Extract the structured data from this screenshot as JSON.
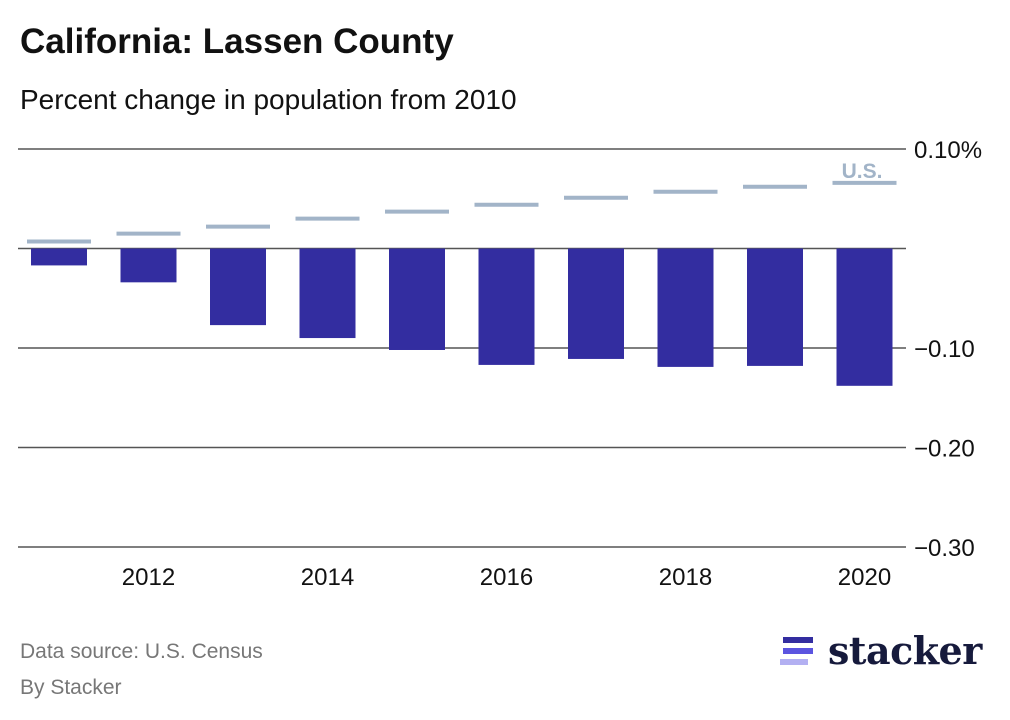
{
  "header": {
    "title": "California: Lassen County",
    "subtitle": "Percent change in population from 2010"
  },
  "footer": {
    "source": "Data source: U.S. Census",
    "byline": "By Stacker",
    "logo_text": "stacker"
  },
  "colors": {
    "bar": "#332da0",
    "us_line": "#a2b4c8",
    "grid": "#555555",
    "logo_bars": [
      "#332da0",
      "#5b54e0",
      "#b3b0f2"
    ]
  },
  "chart_data": {
    "type": "bar",
    "title": "California: Lassen County",
    "subtitle": "Percent change in population from 2010",
    "xlabel": "",
    "ylabel": "",
    "categories": [
      "2011",
      "2012",
      "2013",
      "2014",
      "2015",
      "2016",
      "2017",
      "2018",
      "2019",
      "2020"
    ],
    "series": [
      {
        "name": "Lassen County",
        "style": "bar",
        "values": [
          -0.017,
          -0.034,
          -0.077,
          -0.09,
          -0.102,
          -0.117,
          -0.111,
          -0.119,
          -0.118,
          -0.138
        ]
      },
      {
        "name": "U.S.",
        "style": "line-marker",
        "values": [
          0.007,
          0.015,
          0.022,
          0.03,
          0.037,
          0.044,
          0.051,
          0.057,
          0.062,
          0.066
        ]
      }
    ],
    "us_label": "U.S.",
    "ylim": [
      -0.3,
      0.1
    ],
    "yticks": [
      0.1,
      0,
      -0.1,
      -0.2,
      -0.3
    ],
    "ytick_labels": [
      "0.10%",
      "",
      "−0.10",
      "−0.20",
      "−0.30"
    ],
    "xtick_labels": [
      "2012",
      "2014",
      "2016",
      "2018",
      "2020"
    ],
    "grid": true,
    "legend": "inline label at top-right"
  }
}
